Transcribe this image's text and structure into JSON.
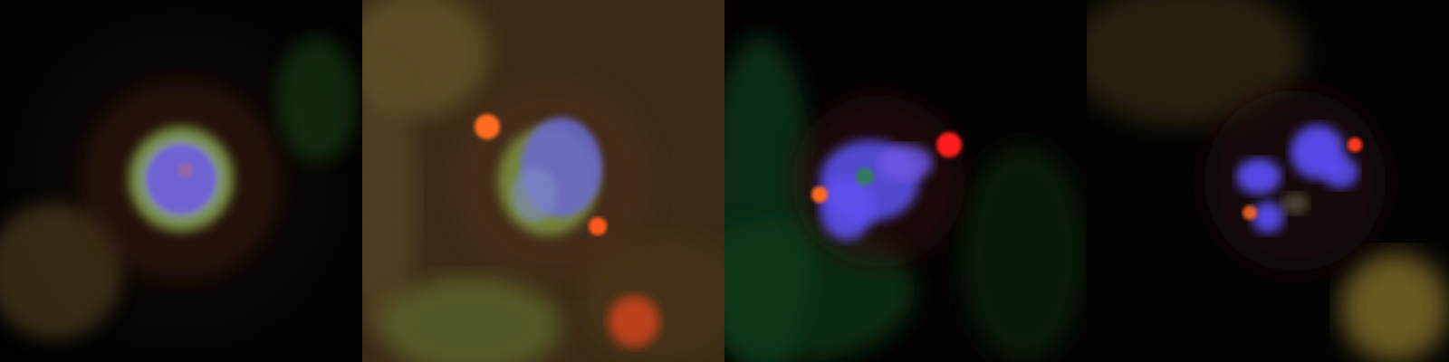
{
  "figure": {
    "panels": [
      {
        "id": "panel-1",
        "description": "",
        "colors": {
          "background": "#050403",
          "blue_chromatin": "#6f63d8",
          "green_ring": "#7f9a49",
          "red_glow": "#3a1d0f"
        }
      },
      {
        "id": "panel-2",
        "description": "",
        "colors": {
          "background": "#3f2b16",
          "blue_chromatin": "#6c6ad0",
          "green_cytoplasm": "#6f8e3f",
          "red_spot": "#ff5a1a"
        }
      },
      {
        "id": "panel-3",
        "description": "",
        "colors": {
          "background": "#050403",
          "blue_chromatin": "#5f4ff0",
          "green_bg": "#0f3f14",
          "red_spot": "#ff1a1a"
        }
      },
      {
        "id": "panel-4",
        "description": "",
        "colors": {
          "background": "#040302",
          "blue_chromatin": "#5b4cf0",
          "red_spot": "#ff3a24",
          "yellow_blob": "#7a6625"
        }
      }
    ]
  }
}
